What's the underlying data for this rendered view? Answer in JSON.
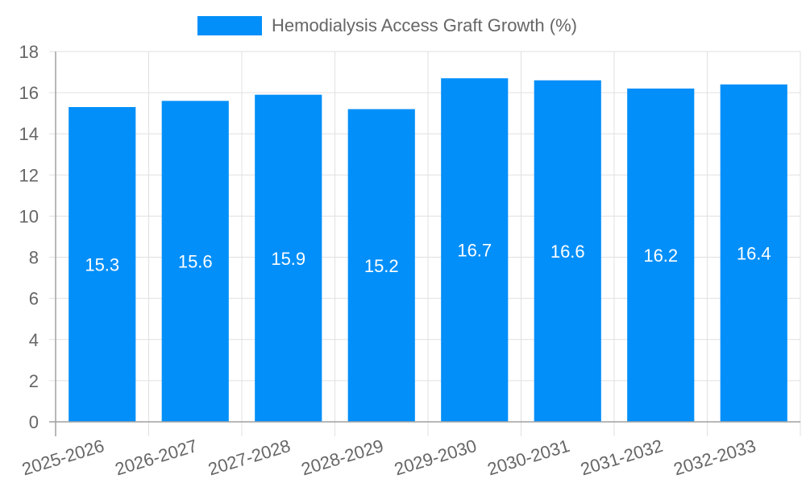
{
  "legend": {
    "label": "Hemodialysis Access Graft Growth (%)",
    "color": "#038ff9"
  },
  "colors": {
    "bar": "#038ff9",
    "grid": "#e0e0e0",
    "axis": "#a0a0a0",
    "tick_text": "#666666",
    "data_label": "#ffffff"
  },
  "chart_data": {
    "type": "bar",
    "title": "",
    "xlabel": "",
    "ylabel": "",
    "categories": [
      "2025-2026",
      "2026-2027",
      "2027-2028",
      "2028-2029",
      "2029-2030",
      "2030-2031",
      "2031-2032",
      "2032-2033"
    ],
    "series": [
      {
        "name": "Hemodialysis Access Graft Growth (%)",
        "values": [
          15.3,
          15.6,
          15.9,
          15.2,
          16.7,
          16.6,
          16.2,
          16.4
        ]
      }
    ],
    "values": [
      15.3,
      15.6,
      15.9,
      15.2,
      16.7,
      16.6,
      16.2,
      16.4
    ],
    "ylim": [
      0,
      18
    ],
    "yticks": [
      0,
      2,
      4,
      6,
      8,
      10,
      12,
      14,
      16,
      18
    ],
    "grid": true,
    "legend_position": "top",
    "data_labels": true
  }
}
